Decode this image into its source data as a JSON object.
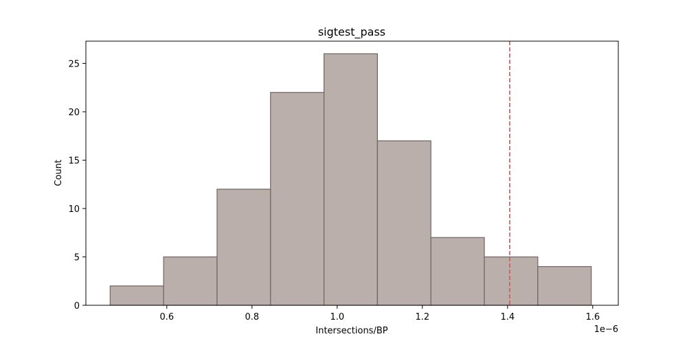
{
  "chart_data": {
    "type": "bar",
    "title": "sigtest_pass",
    "xlabel": "Intersections/BP",
    "ylabel": "Count",
    "x_offset_label": "1e−6",
    "bin_edges": [
      0.467,
      0.5925,
      0.718,
      0.8435,
      0.969,
      1.0945,
      1.22,
      1.3455,
      1.471,
      1.5965
    ],
    "values": [
      2,
      5,
      12,
      22,
      26,
      17,
      7,
      5,
      4
    ],
    "xlim": [
      0.41,
      1.66
    ],
    "ylim": [
      0,
      27.3
    ],
    "xticks": [
      0.6,
      0.8,
      1.0,
      1.2,
      1.4,
      1.6
    ],
    "xtick_labels": [
      "0.6",
      "0.8",
      "1.0",
      "1.2",
      "1.4",
      "1.6"
    ],
    "yticks": [
      0,
      5,
      10,
      15,
      20,
      25
    ],
    "ytick_labels": [
      "0",
      "5",
      "10",
      "15",
      "20",
      "25"
    ],
    "reference_line": {
      "x": 1.405,
      "style": "dashed",
      "color": "#d9534f"
    },
    "bar_color": "#baafaa",
    "bar_edge_color": "#6e6461",
    "grid": false,
    "legend": "none"
  }
}
